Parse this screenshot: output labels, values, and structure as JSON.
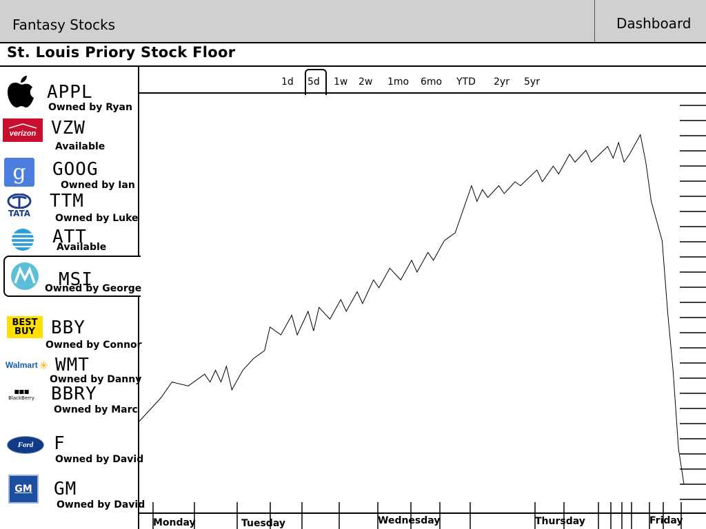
{
  "header": {
    "app_title": "Fantasy Stocks",
    "dashboard_label": "Dashboard"
  },
  "subtitle": "St. Louis Priory Stock Floor",
  "stocks": [
    {
      "ticker": "APPL",
      "owner": "Owned by Ryan",
      "logo": "apple-logo-icon"
    },
    {
      "ticker": "VZW",
      "owner": "Available",
      "logo": "verizon-logo"
    },
    {
      "ticker": "GOOG",
      "owner": "Owned by Ian",
      "logo": "google-logo-icon"
    },
    {
      "ticker": "TTM",
      "owner": "Owned by Luke",
      "logo": "tata-logo"
    },
    {
      "ticker": "ATT",
      "owner": "Available",
      "logo": "att-logo-icon"
    },
    {
      "ticker": "MSI",
      "owner": "Owned by George",
      "logo": "motorola-logo-icon"
    },
    {
      "ticker": "BBY",
      "owner": "Owned by Connor",
      "logo": "bestbuy-logo"
    },
    {
      "ticker": "WMT",
      "owner": "Owned by Danny",
      "logo": "walmart-logo"
    },
    {
      "ticker": "BBRY",
      "owner": "Owned by Marc",
      "logo": "blackberry-logo"
    },
    {
      "ticker": "F",
      "owner": "Owned by David",
      "logo": "ford-logo"
    },
    {
      "ticker": "GM",
      "owner": "Owned by David",
      "logo": "gm-logo"
    }
  ],
  "logo_text": {
    "verizon": "verizon",
    "google": "g",
    "tata": "TATA",
    "bestbuy_line1": "BEST",
    "bestbuy_line2": "BUY",
    "walmart": "Walmart",
    "blackberry": "BlackBerry",
    "ford": "Ford",
    "gm": "GM"
  },
  "range_tabs": [
    "1d",
    "5d",
    "1w",
    "2w",
    "1mo",
    "6mo",
    "YTD",
    "2yr",
    "5yr"
  ],
  "selected_range": "5d",
  "chart_data": {
    "type": "line",
    "title": "",
    "xlabel": "",
    "ylabel": "",
    "x_tick_labels": [
      "Monday",
      "Tuesday",
      "Wednesday",
      "Thursday",
      "Friday"
    ],
    "series": [
      {
        "values": [
          [
            0.0,
            0.22
          ],
          [
            0.04,
            0.28
          ],
          [
            0.06,
            0.32
          ],
          [
            0.09,
            0.31
          ],
          [
            0.12,
            0.34
          ],
          [
            0.13,
            0.32
          ],
          [
            0.14,
            0.35
          ],
          [
            0.15,
            0.32
          ],
          [
            0.16,
            0.36
          ],
          [
            0.17,
            0.3
          ],
          [
            0.19,
            0.35
          ],
          [
            0.21,
            0.38
          ],
          [
            0.23,
            0.4
          ],
          [
            0.24,
            0.46
          ],
          [
            0.26,
            0.44
          ],
          [
            0.28,
            0.49
          ],
          [
            0.29,
            0.44
          ],
          [
            0.31,
            0.5
          ],
          [
            0.32,
            0.45
          ],
          [
            0.33,
            0.51
          ],
          [
            0.35,
            0.48
          ],
          [
            0.37,
            0.53
          ],
          [
            0.38,
            0.5
          ],
          [
            0.4,
            0.55
          ],
          [
            0.41,
            0.52
          ],
          [
            0.43,
            0.58
          ],
          [
            0.44,
            0.56
          ],
          [
            0.46,
            0.61
          ],
          [
            0.48,
            0.58
          ],
          [
            0.5,
            0.63
          ],
          [
            0.51,
            0.6
          ],
          [
            0.53,
            0.65
          ],
          [
            0.54,
            0.63
          ],
          [
            0.56,
            0.68
          ],
          [
            0.58,
            0.7
          ],
          [
            0.61,
            0.82
          ],
          [
            0.62,
            0.78
          ],
          [
            0.63,
            0.81
          ],
          [
            0.64,
            0.79
          ],
          [
            0.66,
            0.82
          ],
          [
            0.67,
            0.8
          ],
          [
            0.69,
            0.83
          ],
          [
            0.7,
            0.82
          ],
          [
            0.73,
            0.86
          ],
          [
            0.74,
            0.83
          ],
          [
            0.76,
            0.87
          ],
          [
            0.77,
            0.85
          ],
          [
            0.79,
            0.9
          ],
          [
            0.8,
            0.88
          ],
          [
            0.82,
            0.91
          ],
          [
            0.83,
            0.88
          ],
          [
            0.86,
            0.92
          ],
          [
            0.87,
            0.89
          ],
          [
            0.88,
            0.93
          ],
          [
            0.89,
            0.88
          ],
          [
            0.9,
            0.9
          ],
          [
            0.92,
            0.95
          ],
          [
            0.93,
            0.88
          ],
          [
            0.94,
            0.78
          ],
          [
            0.96,
            0.68
          ],
          [
            0.97,
            0.5
          ],
          [
            0.98,
            0.35
          ],
          [
            0.99,
            0.15
          ],
          [
            1.0,
            0.06
          ]
        ]
      }
    ]
  }
}
